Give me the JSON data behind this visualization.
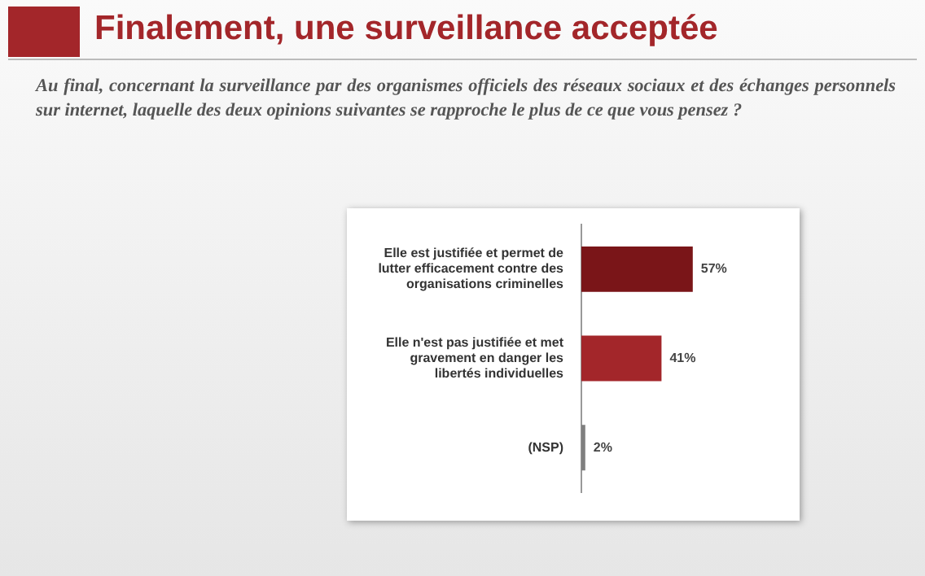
{
  "chart_data": {
    "type": "bar",
    "orientation": "horizontal",
    "title": "Finalement, une surveillance acceptée",
    "subtitle": "Au final, concernant la surveillance par des organismes officiels des réseaux sociaux et des échanges personnels sur internet, laquelle des deux opinions suivantes se rapproche le plus de ce que vous pensez ?",
    "categories": [
      "Elle est justifiée et permet de lutter efficacement contre des organisations criminelles",
      "Elle n'est pas justifiée et met gravement en danger les libertés individuelles",
      "(NSP)"
    ],
    "values": [
      57,
      41,
      2
    ],
    "colors": [
      "#7a1518",
      "#a3262a",
      "#7f7f7f"
    ],
    "value_labels": [
      "57%",
      "41%",
      "2%"
    ],
    "tick_labels": "y"
  }
}
